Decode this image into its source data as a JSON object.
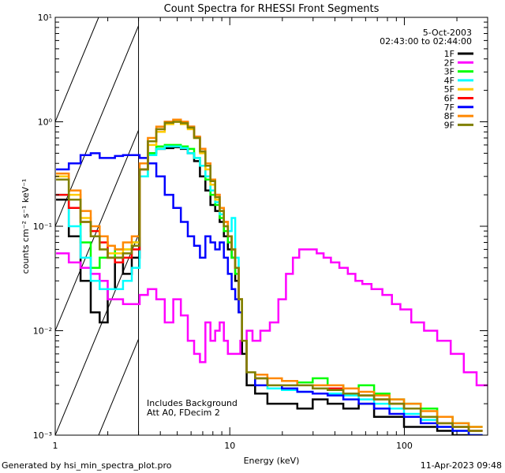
{
  "chart_data": {
    "type": "line",
    "title": "Count Spectra for RHESSI Front Segments",
    "xlabel": "Energy (keV)",
    "ylabel": "counts cm⁻² s⁻¹ keV⁻¹",
    "xscale": "log",
    "yscale": "log",
    "xlim": [
      1,
      300
    ],
    "ylim": [
      0.001,
      10
    ],
    "x_ticks": [
      {
        "value": 1,
        "label": "1"
      },
      {
        "value": 10,
        "label": "10"
      },
      {
        "value": 100,
        "label": "100"
      }
    ],
    "y_ticks": [
      {
        "value": 0.001,
        "label": "10⁻³"
      },
      {
        "value": 0.01,
        "label": "10⁻²"
      },
      {
        "value": 0.1,
        "label": "10⁻¹"
      },
      {
        "value": 1,
        "label": "10⁰"
      },
      {
        "value": 10,
        "label": "10¹"
      }
    ],
    "date": "5-Oct-2003",
    "time_range": "02:43:00 to 02:44:00",
    "annotations": [
      "Includes Background",
      "Att A0, FDecim 2"
    ],
    "hatched_region": {
      "x_from": 1,
      "x_to": 3
    },
    "footer_left": "Generated by hsi_min_spectra_plot.pro",
    "footer_right": "11-Apr-2023 09:48",
    "series": [
      {
        "name": "1F",
        "color": "#000000",
        "x": [
          1.1,
          1.3,
          1.5,
          1.7,
          1.9,
          2.1,
          2.3,
          2.6,
          2.9,
          3.2,
          3.6,
          4.0,
          4.5,
          5.0,
          5.5,
          6.0,
          6.5,
          7.0,
          7.5,
          8.0,
          8.5,
          9.0,
          9.5,
          10.0,
          10.5,
          11.0,
          11.5,
          12.0,
          13,
          15,
          18,
          22,
          27,
          33,
          40,
          50,
          60,
          75,
          90,
          110,
          140,
          170,
          210,
          260
        ],
        "y": [
          0.18,
          0.08,
          0.03,
          0.015,
          0.012,
          0.025,
          0.05,
          0.035,
          0.05,
          0.35,
          0.5,
          0.55,
          0.56,
          0.57,
          0.55,
          0.5,
          0.42,
          0.3,
          0.22,
          0.16,
          0.14,
          0.11,
          0.08,
          0.06,
          0.05,
          0.03,
          0.015,
          0.006,
          0.003,
          0.0025,
          0.002,
          0.002,
          0.0018,
          0.0022,
          0.002,
          0.0018,
          0.002,
          0.0015,
          0.0015,
          0.0012,
          0.0012,
          0.0011,
          0.001,
          0.001
        ]
      },
      {
        "name": "2F",
        "color": "#ff00ff",
        "x": [
          1.1,
          1.3,
          1.5,
          1.7,
          1.9,
          2.1,
          2.3,
          2.6,
          2.9,
          3.2,
          3.6,
          4.0,
          4.5,
          5.0,
          5.5,
          6.0,
          6.5,
          7.0,
          7.5,
          8.0,
          8.5,
          9.0,
          9.5,
          10.0,
          10.5,
          11.0,
          12,
          13,
          14,
          16,
          18,
          20,
          22,
          24,
          26,
          28,
          30,
          33,
          36,
          40,
          45,
          50,
          55,
          60,
          70,
          80,
          90,
          100,
          120,
          140,
          170,
          200,
          240,
          280
        ],
        "y": [
          0.055,
          0.045,
          0.04,
          0.035,
          0.03,
          0.02,
          0.02,
          0.018,
          0.018,
          0.022,
          0.025,
          0.02,
          0.012,
          0.02,
          0.014,
          0.008,
          0.006,
          0.005,
          0.012,
          0.008,
          0.01,
          0.012,
          0.008,
          0.006,
          0.006,
          0.006,
          0.008,
          0.01,
          0.008,
          0.01,
          0.012,
          0.02,
          0.035,
          0.05,
          0.06,
          0.06,
          0.06,
          0.055,
          0.05,
          0.045,
          0.04,
          0.035,
          0.03,
          0.028,
          0.025,
          0.022,
          0.018,
          0.016,
          0.012,
          0.01,
          0.008,
          0.006,
          0.004,
          0.003
        ]
      },
      {
        "name": "3F",
        "color": "#00ff00",
        "x": [
          1.1,
          1.3,
          1.5,
          1.7,
          1.9,
          2.1,
          2.3,
          2.6,
          2.9,
          3.2,
          3.6,
          4.0,
          4.5,
          5.0,
          5.5,
          6.0,
          6.5,
          7.0,
          7.5,
          8.0,
          8.5,
          9.0,
          9.5,
          10.0,
          10.5,
          11.0,
          11.5,
          12.0,
          13,
          15,
          18,
          22,
          27,
          33,
          40,
          50,
          60,
          75,
          90,
          110,
          140,
          170,
          210,
          260
        ],
        "y": [
          0.3,
          0.15,
          0.07,
          0.04,
          0.05,
          0.05,
          0.06,
          0.06,
          0.07,
          0.3,
          0.5,
          0.58,
          0.6,
          0.6,
          0.58,
          0.55,
          0.45,
          0.38,
          0.28,
          0.2,
          0.16,
          0.12,
          0.09,
          0.07,
          0.05,
          0.035,
          0.02,
          0.008,
          0.004,
          0.0035,
          0.003,
          0.003,
          0.0032,
          0.0035,
          0.003,
          0.0028,
          0.003,
          0.0025,
          0.0022,
          0.002,
          0.0018,
          0.0015,
          0.0013,
          0.0012
        ]
      },
      {
        "name": "4F",
        "color": "#00ffff",
        "x": [
          1.1,
          1.3,
          1.5,
          1.7,
          1.9,
          2.1,
          2.3,
          2.6,
          2.9,
          3.2,
          3.6,
          4.0,
          4.5,
          5.0,
          5.5,
          6.0,
          6.5,
          7.0,
          7.5,
          8.0,
          8.5,
          9.0,
          9.5,
          10.0,
          10.5,
          11.0,
          11.5,
          12.0,
          13,
          15,
          18,
          22,
          27,
          33,
          40,
          50,
          60,
          75,
          90,
          110,
          140,
          170,
          210,
          260
        ],
        "y": [
          0.2,
          0.1,
          0.05,
          0.03,
          0.025,
          0.025,
          0.025,
          0.03,
          0.04,
          0.3,
          0.48,
          0.55,
          0.58,
          0.58,
          0.56,
          0.5,
          0.45,
          0.38,
          0.3,
          0.22,
          0.17,
          0.13,
          0.1,
          0.09,
          0.12,
          0.05,
          0.02,
          0.008,
          0.004,
          0.003,
          0.0028,
          0.0027,
          0.0026,
          0.0025,
          0.0025,
          0.0024,
          0.0022,
          0.002,
          0.0018,
          0.0016,
          0.0014,
          0.0012,
          0.0011,
          0.001
        ]
      },
      {
        "name": "5F",
        "color": "#ffcc00",
        "x": [
          1.1,
          1.3,
          1.5,
          1.7,
          1.9,
          2.1,
          2.3,
          2.6,
          2.9,
          3.2,
          3.6,
          4.0,
          4.5,
          5.0,
          5.5,
          6.0,
          6.5,
          7.0,
          7.5,
          8.0,
          8.5,
          9.0,
          9.5,
          10.0,
          10.5,
          11.0,
          11.5,
          12.0,
          13,
          15,
          18,
          22,
          27,
          33,
          40,
          50,
          60,
          75,
          90,
          110,
          140,
          170,
          210,
          260
        ],
        "y": [
          0.3,
          0.2,
          0.12,
          0.08,
          0.06,
          0.055,
          0.055,
          0.06,
          0.07,
          0.35,
          0.6,
          0.8,
          0.95,
          1.0,
          0.95,
          0.85,
          0.7,
          0.5,
          0.35,
          0.25,
          0.18,
          0.14,
          0.1,
          0.08,
          0.06,
          0.04,
          0.02,
          0.008,
          0.004,
          0.0035,
          0.003,
          0.003,
          0.003,
          0.0028,
          0.0028,
          0.0025,
          0.0024,
          0.0022,
          0.002,
          0.0018,
          0.0015,
          0.0013,
          0.0012,
          0.0011
        ]
      },
      {
        "name": "6F",
        "color": "#ff0000",
        "x": [
          1.1,
          1.3,
          1.5,
          1.7,
          1.9,
          2.1,
          2.3,
          2.6,
          2.9,
          3.2,
          3.6,
          4.0,
          4.5,
          5.0,
          5.5,
          6.0,
          6.5,
          7.0,
          7.5,
          8.0,
          8.5,
          9.0,
          9.5,
          10.0,
          10.5,
          11.0,
          11.5,
          12.0,
          13,
          15,
          18,
          22,
          27,
          33,
          40,
          50,
          60,
          75,
          90,
          110,
          140,
          170,
          210,
          260
        ],
        "y": [
          0.2,
          0.15,
          0.11,
          0.09,
          0.07,
          0.05,
          0.045,
          0.05,
          0.06,
          0.35,
          0.65,
          0.85,
          1.0,
          1.05,
          1.0,
          0.9,
          0.72,
          0.55,
          0.4,
          0.28,
          0.2,
          0.15,
          0.11,
          0.08,
          0.06,
          0.04,
          0.02,
          0.008,
          0.004,
          0.0035,
          0.003,
          0.003,
          0.003,
          0.0028,
          0.0028,
          0.0025,
          0.0024,
          0.0022,
          0.002,
          0.0018,
          0.0015,
          0.0013,
          0.0012,
          0.0011
        ]
      },
      {
        "name": "7F",
        "color": "#0000ff",
        "x": [
          1.1,
          1.3,
          1.5,
          1.7,
          1.9,
          2.1,
          2.3,
          2.6,
          2.9,
          3.2,
          3.6,
          4.0,
          4.5,
          5.0,
          5.5,
          6.0,
          6.5,
          7.0,
          7.5,
          8.0,
          8.5,
          9.0,
          9.5,
          10.0,
          10.5,
          11.0,
          11.5,
          12.0,
          13,
          15,
          18,
          22,
          27,
          33,
          40,
          50,
          60,
          75,
          90,
          110,
          140,
          170,
          210,
          260
        ],
        "y": [
          0.35,
          0.4,
          0.48,
          0.5,
          0.45,
          0.45,
          0.47,
          0.48,
          0.48,
          0.45,
          0.4,
          0.3,
          0.2,
          0.15,
          0.11,
          0.08,
          0.065,
          0.05,
          0.08,
          0.07,
          0.06,
          0.07,
          0.05,
          0.035,
          0.025,
          0.02,
          0.015,
          0.008,
          0.004,
          0.003,
          0.003,
          0.0028,
          0.0026,
          0.0025,
          0.0024,
          0.0022,
          0.002,
          0.0018,
          0.0016,
          0.0015,
          0.0013,
          0.0012,
          0.0011,
          0.001
        ]
      },
      {
        "name": "8F",
        "color": "#ff8800",
        "x": [
          1.1,
          1.3,
          1.5,
          1.7,
          1.9,
          2.1,
          2.3,
          2.6,
          2.9,
          3.2,
          3.6,
          4.0,
          4.5,
          5.0,
          5.5,
          6.0,
          6.5,
          7.0,
          7.5,
          8.0,
          8.5,
          9.0,
          9.5,
          10.0,
          10.5,
          11.0,
          11.5,
          12.0,
          13,
          15,
          18,
          22,
          27,
          33,
          40,
          50,
          60,
          75,
          90,
          110,
          140,
          170,
          210,
          260
        ],
        "y": [
          0.32,
          0.22,
          0.14,
          0.1,
          0.08,
          0.065,
          0.06,
          0.07,
          0.08,
          0.4,
          0.7,
          0.9,
          1.0,
          1.05,
          1.0,
          0.9,
          0.72,
          0.55,
          0.4,
          0.28,
          0.2,
          0.15,
          0.11,
          0.08,
          0.06,
          0.04,
          0.02,
          0.008,
          0.004,
          0.0038,
          0.0035,
          0.0033,
          0.003,
          0.003,
          0.003,
          0.0028,
          0.0026,
          0.0024,
          0.0022,
          0.002,
          0.0017,
          0.0015,
          0.0013,
          0.0012
        ]
      },
      {
        "name": "9F",
        "color": "#808000",
        "x": [
          1.1,
          1.3,
          1.5,
          1.7,
          1.9,
          2.1,
          2.3,
          2.6,
          2.9,
          3.2,
          3.6,
          4.0,
          4.5,
          5.0,
          5.5,
          6.0,
          6.5,
          7.0,
          7.5,
          8.0,
          8.5,
          9.0,
          9.5,
          10.0,
          10.5,
          11.0,
          11.5,
          12.0,
          13,
          15,
          18,
          22,
          27,
          33,
          40,
          50,
          60,
          75,
          90,
          110,
          140,
          170,
          210,
          260
        ],
        "y": [
          0.28,
          0.18,
          0.11,
          0.08,
          0.06,
          0.05,
          0.05,
          0.055,
          0.065,
          0.35,
          0.65,
          0.85,
          0.98,
          1.0,
          0.97,
          0.88,
          0.7,
          0.52,
          0.38,
          0.27,
          0.19,
          0.14,
          0.1,
          0.08,
          0.06,
          0.04,
          0.02,
          0.008,
          0.004,
          0.0035,
          0.003,
          0.003,
          0.003,
          0.0028,
          0.0027,
          0.0025,
          0.0024,
          0.0022,
          0.002,
          0.0018,
          0.0015,
          0.0013,
          0.0012,
          0.0011
        ]
      }
    ]
  }
}
